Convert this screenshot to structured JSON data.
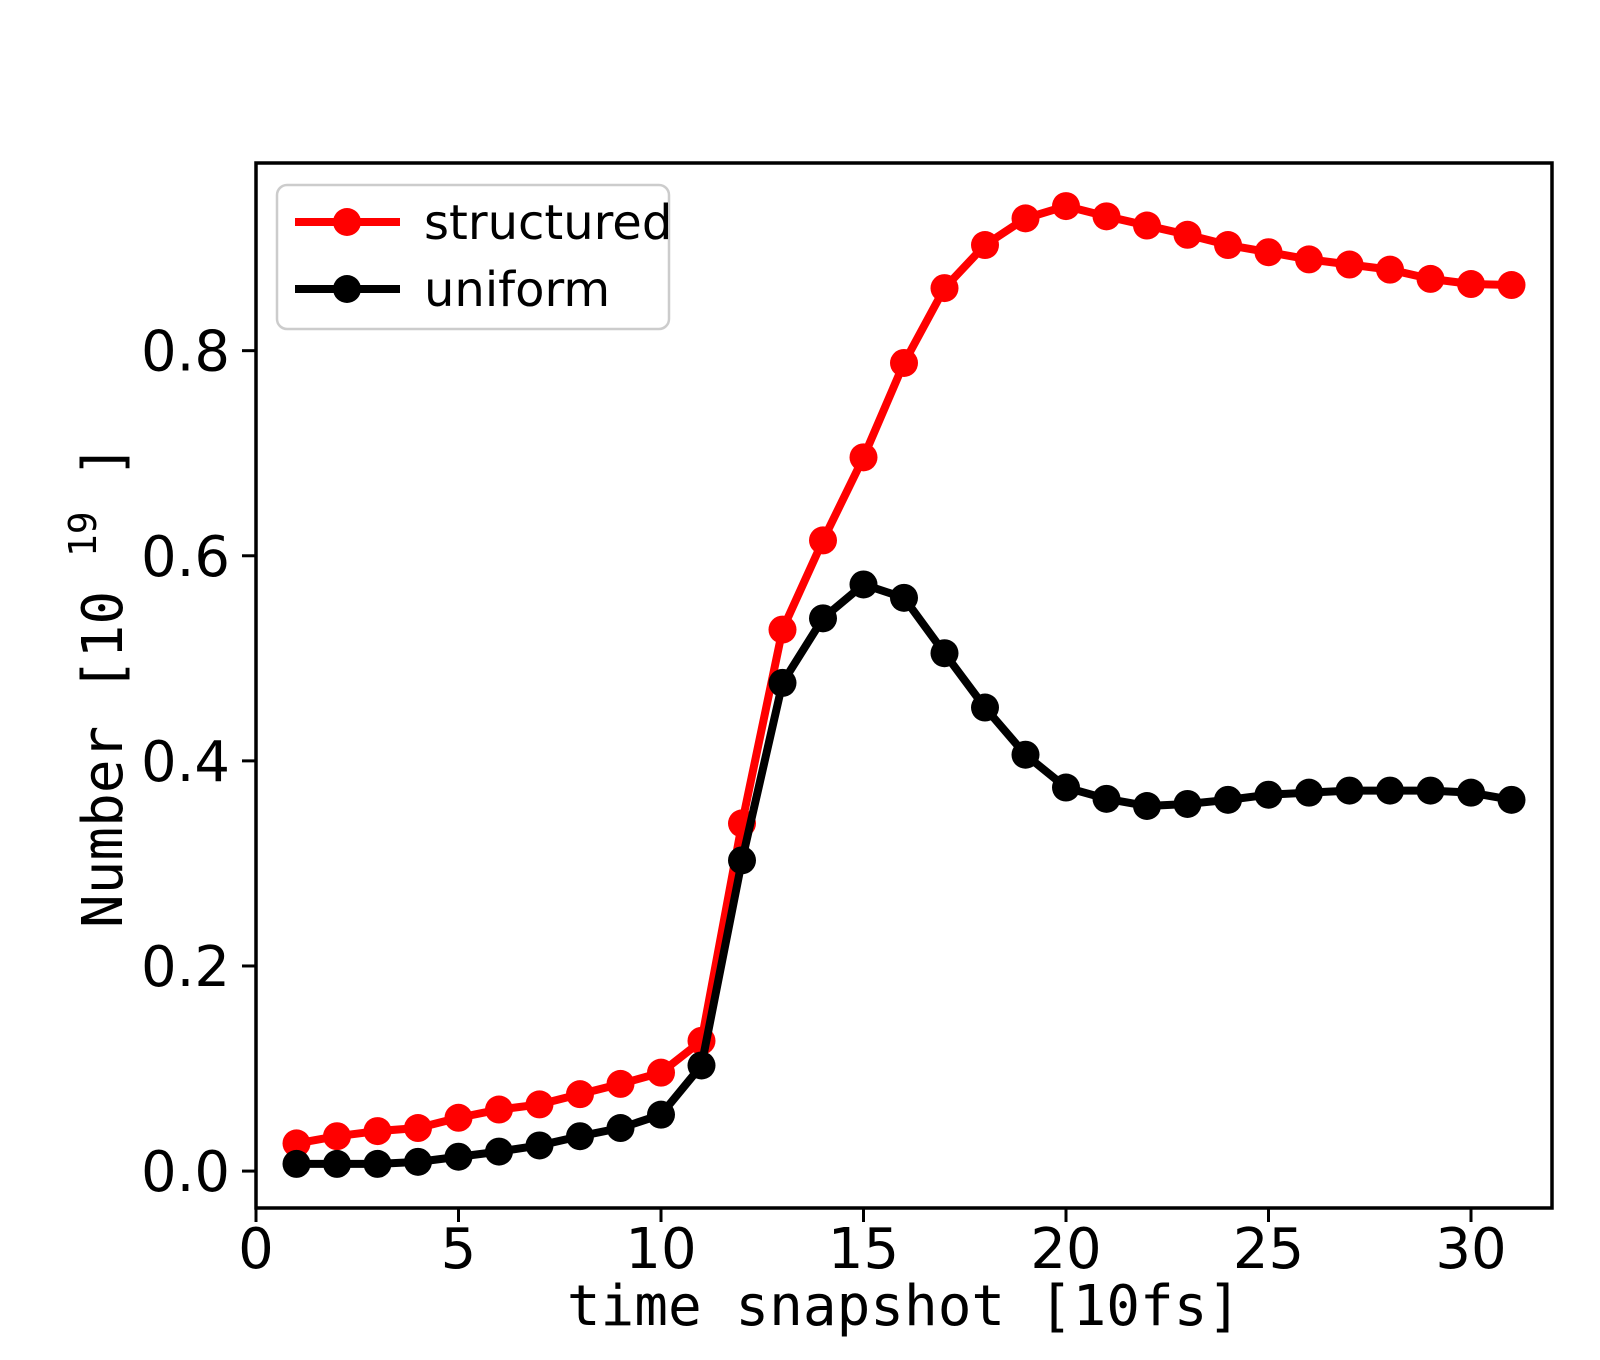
{
  "chart_data": {
    "type": "line",
    "title": "",
    "xlabel": "time snapshot [10fs]",
    "ylabel_base": "Number [10",
    "ylabel_exp": "19",
    "ylabel_close": "]",
    "x": [
      1,
      2,
      3,
      4,
      5,
      6,
      7,
      8,
      9,
      10,
      11,
      12,
      13,
      14,
      15,
      16,
      17,
      18,
      19,
      20,
      21,
      22,
      23,
      24,
      25,
      26,
      27,
      28,
      29,
      30,
      31
    ],
    "series": [
      {
        "name": "structured",
        "color": "#ff0000",
        "marker": "circle",
        "values": [
          0.027,
          0.034,
          0.039,
          0.042,
          0.052,
          0.06,
          0.065,
          0.075,
          0.085,
          0.096,
          0.127,
          0.339,
          0.528,
          0.615,
          0.696,
          0.788,
          0.861,
          0.903,
          0.929,
          0.941,
          0.931,
          0.922,
          0.913,
          0.903,
          0.896,
          0.889,
          0.884,
          0.879,
          0.87,
          0.865,
          0.864
        ]
      },
      {
        "name": "uniform",
        "color": "#000000",
        "marker": "circle",
        "values": [
          0.007,
          0.007,
          0.007,
          0.009,
          0.014,
          0.019,
          0.025,
          0.034,
          0.042,
          0.055,
          0.103,
          0.303,
          0.476,
          0.539,
          0.572,
          0.559,
          0.505,
          0.452,
          0.406,
          0.374,
          0.363,
          0.356,
          0.358,
          0.362,
          0.367,
          0.369,
          0.371,
          0.371,
          0.371,
          0.369,
          0.362
        ]
      }
    ],
    "xticks": [
      "0",
      "5",
      "10",
      "15",
      "20",
      "25",
      "30"
    ],
    "yticks": [
      "0.0",
      "0.2",
      "0.4",
      "0.6",
      "0.8"
    ],
    "xlim": [
      0,
      32
    ],
    "ylim": [
      -0.036,
      0.983
    ],
    "grid": false,
    "legend": {
      "position": "upper-left",
      "entries": [
        "structured",
        "uniform"
      ]
    },
    "axis_color": "#000000",
    "background_color": "#ffffff"
  }
}
